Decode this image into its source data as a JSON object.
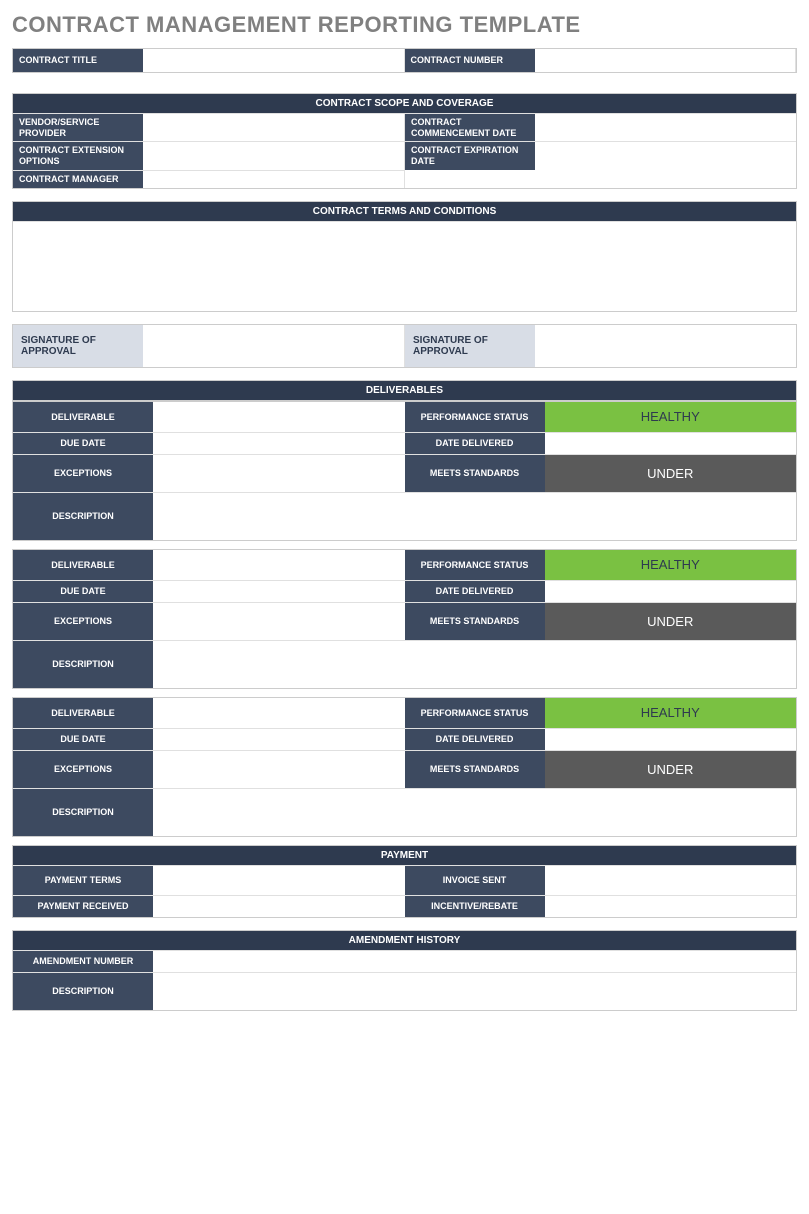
{
  "title": "CONTRACT MANAGEMENT REPORTING TEMPLATE",
  "colors": {
    "header_band": "#2e3a4f",
    "label_dark": "#3d4a60",
    "label_light": "#d8dde6",
    "healthy": "#7ac142",
    "under": "#5a5a5a",
    "border": "#cccccc",
    "title_text": "#808080"
  },
  "contract": {
    "title_label": "CONTRACT TITLE",
    "title_value": "",
    "number_label": "CONTRACT NUMBER",
    "number_value": ""
  },
  "scope": {
    "header": "CONTRACT SCOPE AND COVERAGE",
    "rows": [
      {
        "l1": "VENDOR/SERVICE PROVIDER",
        "v1": "",
        "l2": "CONTRACT COMMENCEMENT DATE",
        "v2": ""
      },
      {
        "l1": "CONTRACT EXTENSION OPTIONS",
        "v1": "",
        "l2": "CONTRACT EXPIRATION DATE",
        "v2": ""
      },
      {
        "l1": "CONTRACT MANAGER",
        "v1": ""
      }
    ]
  },
  "terms": {
    "header": "CONTRACT TERMS AND CONDITIONS",
    "body": ""
  },
  "signatures": {
    "l1": "SIGNATURE OF APPROVAL",
    "v1": "",
    "l2": "SIGNATURE OF APPROVAL",
    "v2": ""
  },
  "deliverables_header": "DELIVERABLES",
  "deliverable_labels": {
    "deliverable": "DELIVERABLE",
    "performance_status": "PERFORMANCE STATUS",
    "due_date": "DUE DATE",
    "date_delivered": "DATE DELIVERED",
    "exceptions": "EXCEPTIONS",
    "meets_standards": "MEETS STANDARDS",
    "description": "DESCRIPTION"
  },
  "deliverables": [
    {
      "deliverable": "",
      "performance_status": "HEALTHY",
      "due_date": "",
      "date_delivered": "",
      "exceptions": "",
      "meets_standards": "UNDER",
      "description": ""
    },
    {
      "deliverable": "",
      "performance_status": "HEALTHY",
      "due_date": "",
      "date_delivered": "",
      "exceptions": "",
      "meets_standards": "UNDER",
      "description": ""
    },
    {
      "deliverable": "",
      "performance_status": "HEALTHY",
      "due_date": "",
      "date_delivered": "",
      "exceptions": "",
      "meets_standards": "UNDER",
      "description": ""
    }
  ],
  "payment": {
    "header": "PAYMENT",
    "rows": [
      {
        "l1": "PAYMENT TERMS",
        "v1": "",
        "l2": "INVOICE SENT",
        "v2": ""
      },
      {
        "l1": "PAYMENT RECEIVED",
        "v1": "",
        "l2": "INCENTIVE/REBATE",
        "v2": ""
      }
    ]
  },
  "amendment": {
    "header": "AMENDMENT HISTORY",
    "rows": [
      {
        "l": "AMENDMENT NUMBER",
        "v": ""
      },
      {
        "l": "DESCRIPTION",
        "v": ""
      }
    ]
  }
}
